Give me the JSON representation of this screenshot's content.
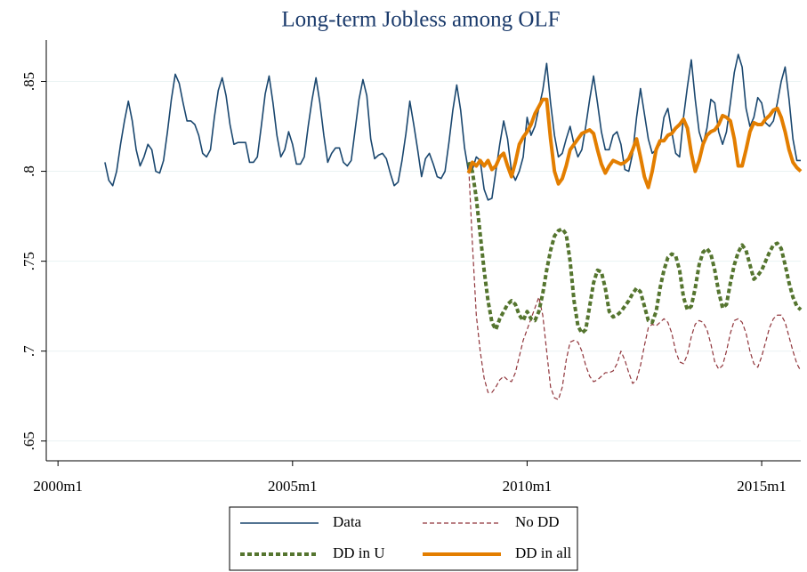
{
  "chart_data": {
    "type": "line",
    "title": "Long-term Jobless among OLF",
    "x": [
      "2001m1",
      "2001m2",
      "2001m3",
      "2001m4",
      "2001m5",
      "2001m6",
      "2001m7",
      "2001m8",
      "2001m9",
      "2001m10",
      "2001m11",
      "2001m12",
      "2002m1",
      "2002m2",
      "2002m3",
      "2002m4",
      "2002m5",
      "2002m6",
      "2002m7",
      "2002m8",
      "2002m9",
      "2002m10",
      "2002m11",
      "2002m12",
      "2003m1",
      "2003m2",
      "2003m3",
      "2003m4",
      "2003m5",
      "2003m6",
      "2003m7",
      "2003m8",
      "2003m9",
      "2003m10",
      "2003m11",
      "2003m12",
      "2004m1",
      "2004m2",
      "2004m3",
      "2004m4",
      "2004m5",
      "2004m6",
      "2004m7",
      "2004m8",
      "2004m9",
      "2004m10",
      "2004m11",
      "2004m12",
      "2005m1",
      "2005m2",
      "2005m3",
      "2005m4",
      "2005m5",
      "2005m6",
      "2005m7",
      "2005m8",
      "2005m9",
      "2005m10",
      "2005m11",
      "2005m12",
      "2006m1",
      "2006m2",
      "2006m3",
      "2006m4",
      "2006m5",
      "2006m6",
      "2006m7",
      "2006m8",
      "2006m9",
      "2006m10",
      "2006m11",
      "2006m12",
      "2007m1",
      "2007m2",
      "2007m3",
      "2007m4",
      "2007m5",
      "2007m6",
      "2007m7",
      "2007m8",
      "2007m9",
      "2007m10",
      "2007m11",
      "2007m12",
      "2008m1",
      "2008m2",
      "2008m3",
      "2008m4",
      "2008m5",
      "2008m6",
      "2008m7",
      "2008m8",
      "2008m9",
      "2008m10",
      "2008m11",
      "2008m12",
      "2009m1",
      "2009m2",
      "2009m3",
      "2009m4",
      "2009m5",
      "2009m6",
      "2009m7",
      "2009m8",
      "2009m9",
      "2009m10",
      "2009m11",
      "2009m12",
      "2010m1",
      "2010m2",
      "2010m3",
      "2010m4",
      "2010m5",
      "2010m6",
      "2010m7",
      "2010m8",
      "2010m9",
      "2010m10",
      "2010m11",
      "2010m12",
      "2011m1",
      "2011m2",
      "2011m3",
      "2011m4",
      "2011m5",
      "2011m6",
      "2011m7",
      "2011m8",
      "2011m9",
      "2011m10",
      "2011m11",
      "2011m12",
      "2012m1",
      "2012m2",
      "2012m3",
      "2012m4",
      "2012m5",
      "2012m6",
      "2012m7",
      "2012m8",
      "2012m9",
      "2012m10",
      "2012m11",
      "2012m12",
      "2013m1",
      "2013m2",
      "2013m3",
      "2013m4",
      "2013m5",
      "2013m6",
      "2013m7",
      "2013m8",
      "2013m9",
      "2013m10",
      "2013m11",
      "2013m12",
      "2014m1",
      "2014m2",
      "2014m3",
      "2014m4",
      "2014m5",
      "2014m6",
      "2014m7",
      "2014m8",
      "2014m9",
      "2014m10",
      "2014m11",
      "2014m12",
      "2015m1",
      "2015m2",
      "2015m3",
      "2015m4",
      "2015m5",
      "2015m6",
      "2015m7",
      "2015m8",
      "2015m9",
      "2015m10",
      "2015m11"
    ],
    "series": [
      {
        "name": "Data",
        "color": "#1a476f",
        "linewidth": 1.6,
        "linestyle": "solid",
        "values": [
          0.805,
          0.795,
          0.792,
          0.8,
          0.815,
          0.828,
          0.839,
          0.828,
          0.812,
          0.803,
          0.808,
          0.815,
          0.812,
          0.8,
          0.799,
          0.806,
          0.822,
          0.84,
          0.854,
          0.849,
          0.838,
          0.828,
          0.828,
          0.826,
          0.82,
          0.81,
          0.808,
          0.812,
          0.83,
          0.845,
          0.852,
          0.842,
          0.826,
          0.815,
          0.816,
          0.816,
          0.816,
          0.805,
          0.805,
          0.808,
          0.825,
          0.843,
          0.853,
          0.838,
          0.82,
          0.808,
          0.812,
          0.822,
          0.815,
          0.804,
          0.804,
          0.808,
          0.825,
          0.84,
          0.852,
          0.838,
          0.82,
          0.805,
          0.81,
          0.813,
          0.813,
          0.805,
          0.803,
          0.806,
          0.823,
          0.84,
          0.851,
          0.842,
          0.818,
          0.807,
          0.809,
          0.81,
          0.807,
          0.799,
          0.792,
          0.794,
          0.806,
          0.821,
          0.839,
          0.826,
          0.812,
          0.797,
          0.807,
          0.81,
          0.804,
          0.797,
          0.796,
          0.8,
          0.816,
          0.834,
          0.848,
          0.834,
          0.813,
          0.8,
          0.801,
          0.808,
          0.806,
          0.79,
          0.784,
          0.785,
          0.8,
          0.815,
          0.828,
          0.818,
          0.8,
          0.795,
          0.8,
          0.808,
          0.83,
          0.82,
          0.825,
          0.835,
          0.845,
          0.86,
          0.838,
          0.82,
          0.808,
          0.81,
          0.818,
          0.825,
          0.815,
          0.808,
          0.812,
          0.825,
          0.84,
          0.853,
          0.838,
          0.822,
          0.812,
          0.812,
          0.82,
          0.822,
          0.815,
          0.801,
          0.8,
          0.81,
          0.83,
          0.846,
          0.832,
          0.818,
          0.81,
          0.812,
          0.815,
          0.83,
          0.835,
          0.822,
          0.81,
          0.808,
          0.83,
          0.847,
          0.862,
          0.84,
          0.822,
          0.815,
          0.824,
          0.84,
          0.838,
          0.822,
          0.815,
          0.822,
          0.838,
          0.855,
          0.865,
          0.858,
          0.835,
          0.825,
          0.83,
          0.841,
          0.838,
          0.827,
          0.825,
          0.828,
          0.838,
          0.85,
          0.858,
          0.84,
          0.818,
          0.806,
          0.806
        ]
      },
      {
        "name": "No DD",
        "color": "#90353b",
        "linewidth": 1.2,
        "linestyle": "dashed",
        "values": [
          null,
          null,
          null,
          null,
          null,
          null,
          null,
          null,
          null,
          null,
          null,
          null,
          null,
          null,
          null,
          null,
          null,
          null,
          null,
          null,
          null,
          null,
          null,
          null,
          null,
          null,
          null,
          null,
          null,
          null,
          null,
          null,
          null,
          null,
          null,
          null,
          null,
          null,
          null,
          null,
          null,
          null,
          null,
          null,
          null,
          null,
          null,
          null,
          null,
          null,
          null,
          null,
          null,
          null,
          null,
          null,
          null,
          null,
          null,
          null,
          null,
          null,
          null,
          null,
          null,
          null,
          null,
          null,
          null,
          null,
          null,
          null,
          null,
          null,
          null,
          null,
          null,
          null,
          null,
          null,
          null,
          null,
          null,
          null,
          null,
          null,
          null,
          null,
          null,
          null,
          null,
          null,
          null,
          0.805,
          0.76,
          0.72,
          0.7,
          0.685,
          0.677,
          0.677,
          0.68,
          0.684,
          0.686,
          0.684,
          0.683,
          0.688,
          0.697,
          0.706,
          0.712,
          0.718,
          0.724,
          0.73,
          0.72,
          0.7,
          0.68,
          0.674,
          0.673,
          0.68,
          0.695,
          0.705,
          0.706,
          0.705,
          0.7,
          0.692,
          0.686,
          0.683,
          0.684,
          0.686,
          0.688,
          0.688,
          0.689,
          0.693,
          0.7,
          0.695,
          0.688,
          0.682,
          0.684,
          0.692,
          0.703,
          0.713,
          0.715,
          0.714,
          0.716,
          0.718,
          0.716,
          0.71,
          0.7,
          0.694,
          0.693,
          0.698,
          0.708,
          0.715,
          0.717,
          0.716,
          0.712,
          0.704,
          0.694,
          0.69,
          0.692,
          0.7,
          0.71,
          0.717,
          0.718,
          0.716,
          0.71,
          0.7,
          0.693,
          0.691,
          0.697,
          0.705,
          0.713,
          0.718,
          0.72,
          0.72,
          0.716,
          0.708,
          0.7,
          0.693,
          0.689
        ]
      },
      {
        "name": "DD in U",
        "color": "#55752f",
        "linewidth": 4,
        "linestyle": "dotted",
        "values": [
          null,
          null,
          null,
          null,
          null,
          null,
          null,
          null,
          null,
          null,
          null,
          null,
          null,
          null,
          null,
          null,
          null,
          null,
          null,
          null,
          null,
          null,
          null,
          null,
          null,
          null,
          null,
          null,
          null,
          null,
          null,
          null,
          null,
          null,
          null,
          null,
          null,
          null,
          null,
          null,
          null,
          null,
          null,
          null,
          null,
          null,
          null,
          null,
          null,
          null,
          null,
          null,
          null,
          null,
          null,
          null,
          null,
          null,
          null,
          null,
          null,
          null,
          null,
          null,
          null,
          null,
          null,
          null,
          null,
          null,
          null,
          null,
          null,
          null,
          null,
          null,
          null,
          null,
          null,
          null,
          null,
          null,
          null,
          null,
          null,
          null,
          null,
          null,
          null,
          null,
          null,
          null,
          null,
          0.805,
          0.8,
          0.785,
          0.765,
          0.745,
          0.728,
          0.716,
          0.712,
          0.718,
          0.722,
          0.726,
          0.728,
          0.726,
          0.72,
          0.717,
          0.722,
          0.718,
          0.717,
          0.722,
          0.732,
          0.745,
          0.756,
          0.764,
          0.767,
          0.768,
          0.765,
          0.75,
          0.728,
          0.714,
          0.71,
          0.712,
          0.725,
          0.738,
          0.745,
          0.744,
          0.735,
          0.722,
          0.719,
          0.72,
          0.722,
          0.725,
          0.728,
          0.732,
          0.735,
          0.733,
          0.725,
          0.717,
          0.716,
          0.722,
          0.735,
          0.745,
          0.752,
          0.754,
          0.753,
          0.745,
          0.73,
          0.723,
          0.725,
          0.735,
          0.748,
          0.755,
          0.757,
          0.754,
          0.745,
          0.733,
          0.724,
          0.726,
          0.738,
          0.748,
          0.755,
          0.759,
          0.756,
          0.748,
          0.74,
          0.742,
          0.745,
          0.75,
          0.755,
          0.759,
          0.76,
          0.757,
          0.748,
          0.738,
          0.73,
          0.725,
          0.723
        ]
      },
      {
        "name": "DD in all",
        "color": "#e37e00",
        "linewidth": 4,
        "linestyle": "solid",
        "values": [
          null,
          null,
          null,
          null,
          null,
          null,
          null,
          null,
          null,
          null,
          null,
          null,
          null,
          null,
          null,
          null,
          null,
          null,
          null,
          null,
          null,
          null,
          null,
          null,
          null,
          null,
          null,
          null,
          null,
          null,
          null,
          null,
          null,
          null,
          null,
          null,
          null,
          null,
          null,
          null,
          null,
          null,
          null,
          null,
          null,
          null,
          null,
          null,
          null,
          null,
          null,
          null,
          null,
          null,
          null,
          null,
          null,
          null,
          null,
          null,
          null,
          null,
          null,
          null,
          null,
          null,
          null,
          null,
          null,
          null,
          null,
          null,
          null,
          null,
          null,
          null,
          null,
          null,
          null,
          null,
          null,
          null,
          null,
          null,
          null,
          null,
          null,
          null,
          null,
          null,
          null,
          null,
          null,
          0.799,
          0.805,
          0.803,
          0.806,
          0.803,
          0.806,
          0.801,
          0.803,
          0.808,
          0.81,
          0.803,
          0.797,
          0.805,
          0.815,
          0.819,
          0.822,
          0.826,
          0.832,
          0.836,
          0.84,
          0.84,
          0.818,
          0.8,
          0.793,
          0.796,
          0.803,
          0.812,
          0.815,
          0.818,
          0.821,
          0.822,
          0.823,
          0.821,
          0.812,
          0.804,
          0.799,
          0.803,
          0.806,
          0.805,
          0.804,
          0.805,
          0.807,
          0.812,
          0.818,
          0.808,
          0.797,
          0.791,
          0.8,
          0.812,
          0.817,
          0.817,
          0.82,
          0.821,
          0.824,
          0.826,
          0.829,
          0.824,
          0.81,
          0.8,
          0.806,
          0.815,
          0.82,
          0.822,
          0.823,
          0.826,
          0.831,
          0.83,
          0.828,
          0.818,
          0.803,
          0.803,
          0.812,
          0.822,
          0.827,
          0.826,
          0.826,
          0.829,
          0.831,
          0.834,
          0.835,
          0.83,
          0.822,
          0.812,
          0.805,
          0.802,
          0.8
        ]
      }
    ],
    "xlim": [
      "1999m10",
      "2015m11"
    ],
    "xticks": [
      "2000m1",
      "2005m1",
      "2010m1",
      "2015m1"
    ],
    "ylim": [
      0.639,
      0.873
    ],
    "yticks": [
      {
        "value": 0.65,
        "label": ".65"
      },
      {
        "value": 0.7,
        "label": ".7"
      },
      {
        "value": 0.75,
        "label": ".75"
      },
      {
        "value": 0.8,
        "label": ".8"
      },
      {
        "value": 0.85,
        "label": ".85"
      }
    ],
    "grid": true,
    "legend": "bottom"
  }
}
